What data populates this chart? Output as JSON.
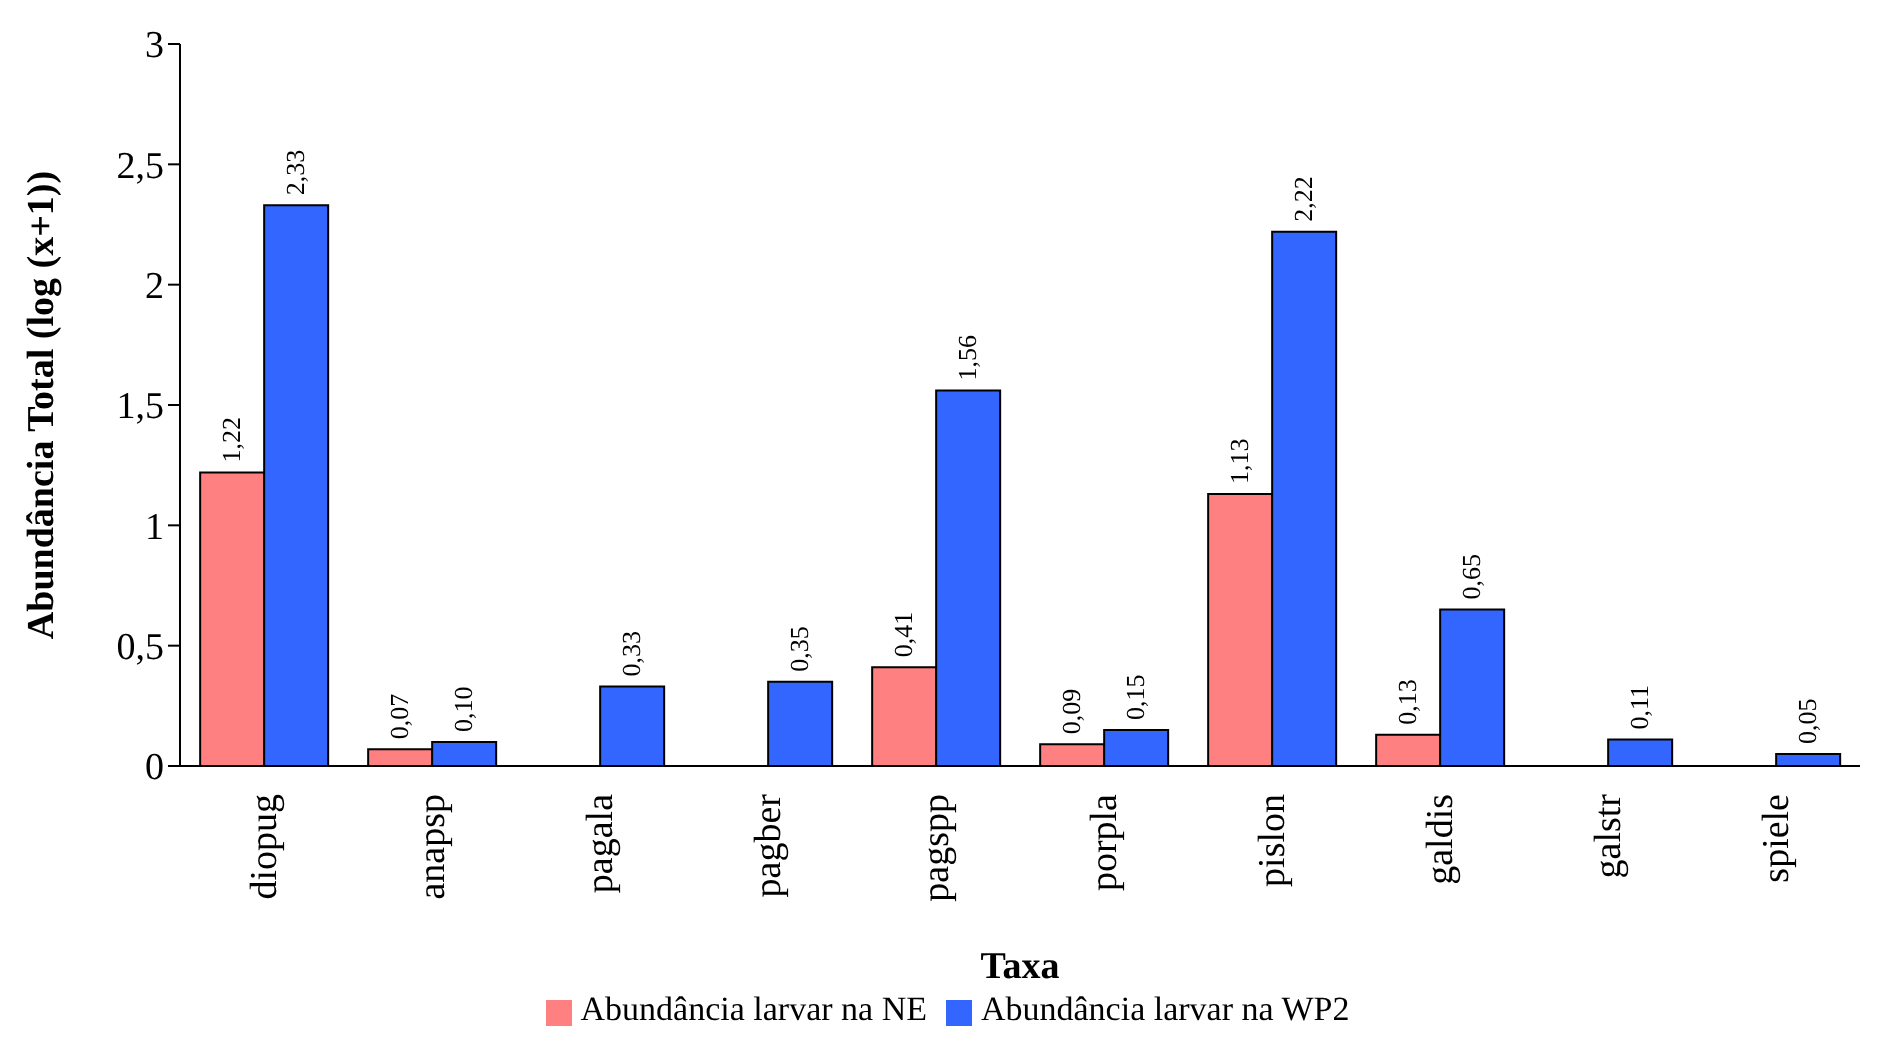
{
  "chart_data": {
    "type": "bar",
    "xlabel": "Taxa",
    "ylabel": "Abundância Total (log (x+1))",
    "categories": [
      "diopug",
      "anapsp",
      "pagala",
      "pagber",
      "pagspp",
      "porpla",
      "pislon",
      "galdis",
      "galstr",
      "spiele"
    ],
    "series": [
      {
        "name": "Abundância larvar na NE",
        "color": "#ff8080",
        "values": [
          1.22,
          0.07,
          null,
          null,
          0.41,
          0.09,
          1.13,
          0.13,
          null,
          null
        ],
        "value_labels": [
          "1,22",
          "0,07",
          null,
          null,
          "0,41",
          "0,09",
          "1,13",
          "0,13",
          null,
          null
        ]
      },
      {
        "name": "Abundância larvar na WP2",
        "color": "#3366ff",
        "values": [
          2.33,
          0.1,
          0.33,
          0.35,
          1.56,
          0.15,
          2.22,
          0.65,
          0.11,
          0.05
        ],
        "value_labels": [
          "2,33",
          "0,10",
          "0,33",
          "0,35",
          "1,56",
          "0,15",
          "2,22",
          "0,65",
          "0,11",
          "0,05"
        ]
      }
    ],
    "ylim": [
      0,
      3
    ],
    "yticks": [
      0,
      {
        "value": 0.5,
        "label": "0,5"
      },
      1,
      {
        "value": 1.5,
        "label": "1,5"
      },
      2,
      {
        "value": 2.5,
        "label": "2,5"
      },
      3
    ],
    "grid": false,
    "legend": "bottom"
  }
}
